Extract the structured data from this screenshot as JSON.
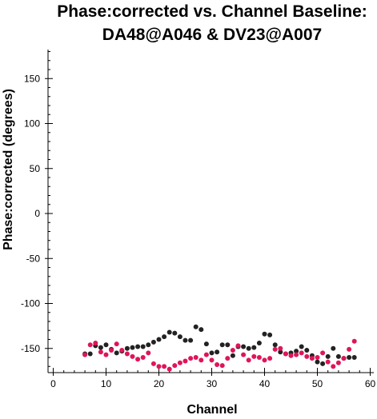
{
  "chart_data": {
    "type": "scatter",
    "title_lines": [
      "Phase:corrected vs. Channel Baseline:",
      "DA48@A046 & DV23@A007"
    ],
    "xlabel": "Channel",
    "ylabel": "Phase:corrected (degrees)",
    "xlim": [
      0,
      60
    ],
    "ylim": [
      -180,
      180
    ],
    "xticks": [
      0,
      10,
      20,
      30,
      40,
      50,
      60
    ],
    "yticks": [
      150,
      100,
      50,
      0,
      -50,
      -100,
      -150
    ],
    "grid": false,
    "legend": "none",
    "series": [
      {
        "color": "#222222",
        "x": [
          6,
          7,
          8,
          9,
          10,
          11,
          12,
          13,
          14,
          15,
          16,
          17,
          18,
          19,
          20,
          21,
          22,
          23,
          24,
          25,
          26,
          27,
          28,
          29,
          30,
          31,
          32,
          33,
          34,
          35,
          36,
          37,
          38,
          39,
          40,
          41,
          42,
          43,
          44,
          45,
          46,
          47,
          48,
          49,
          50,
          51,
          52,
          53,
          54,
          55,
          56,
          57
        ],
        "y": [
          -156,
          -156,
          -147,
          -149,
          -146,
          -151,
          -155,
          -153,
          -150,
          -149,
          -148,
          -148,
          -146,
          -143,
          -140,
          -137,
          -132,
          -133,
          -137,
          -141,
          -141,
          -126,
          -129,
          -145,
          -155,
          -154,
          -146,
          -146,
          -158,
          -148,
          -148,
          -150,
          -149,
          -144,
          -134,
          -135,
          -146,
          -154,
          -156,
          -155,
          -153,
          -148,
          -152,
          -158,
          -165,
          -167,
          -159,
          -150,
          -159,
          -161,
          -160,
          -160
        ]
      },
      {
        "color": "#e0145a",
        "x": [
          6,
          7,
          8,
          9,
          10,
          11,
          12,
          13,
          14,
          15,
          16,
          17,
          18,
          19,
          20,
          21,
          22,
          23,
          24,
          25,
          26,
          27,
          28,
          29,
          30,
          31,
          32,
          33,
          34,
          35,
          36,
          37,
          38,
          39,
          40,
          41,
          42,
          43,
          44,
          45,
          46,
          47,
          48,
          49,
          50,
          51,
          52,
          53,
          54,
          55,
          56,
          57
        ],
        "y": [
          -157,
          -146,
          -144,
          -154,
          -157,
          -152,
          -145,
          -152,
          -156,
          -159,
          -162,
          -160,
          -155,
          -167,
          -170,
          -170,
          -173,
          -169,
          -166,
          -164,
          -161,
          -160,
          -163,
          -157,
          -163,
          -168,
          -169,
          -161,
          -152,
          -147,
          -157,
          -163,
          -159,
          -160,
          -163,
          -161,
          -151,
          -150,
          -156,
          -158,
          -157,
          -155,
          -159,
          -161,
          -160,
          -155,
          -165,
          -170,
          -166,
          -161,
          -151,
          -142
        ]
      }
    ]
  }
}
